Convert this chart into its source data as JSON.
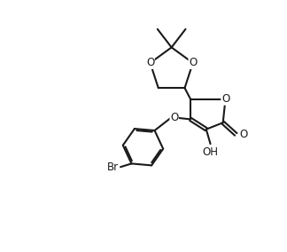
{
  "bg_color": "#ffffff",
  "line_color": "#1a1a1a",
  "line_width": 1.5,
  "font_size": 8.5,
  "figsize": [
    3.24,
    2.84
  ],
  "dpi": 100,
  "xlim": [
    0,
    10
  ],
  "ylim": [
    0,
    8.8
  ]
}
